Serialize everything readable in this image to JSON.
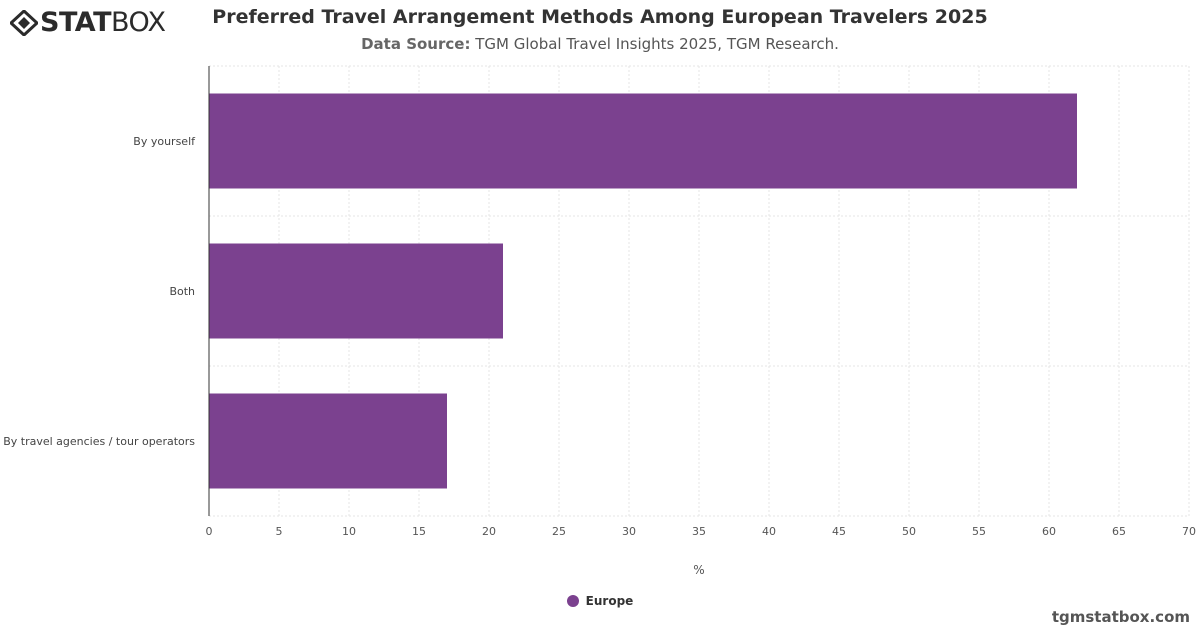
{
  "brand": {
    "logo_bold": "STAT",
    "logo_light": "BOX",
    "credit": "tgmstatbox.com"
  },
  "header": {
    "title": "Preferred Travel Arrangement Methods Among European Travelers 2025",
    "source_label": "Data Source:",
    "source_text": "TGM Global Travel Insights 2025, TGM Research."
  },
  "colors": {
    "bar": "#7b418f",
    "grid": "#e6e6e6",
    "axis": "#333333",
    "text": "#333333"
  },
  "chart_data": {
    "type": "bar",
    "orientation": "horizontal",
    "title": "Preferred Travel Arrangement Methods Among European Travelers 2025",
    "subtitle": "Data Source: TGM Global Travel Insights 2025, TGM Research.",
    "categories": [
      "By yourself",
      "Both",
      "By travel agencies / tour operators"
    ],
    "series": [
      {
        "name": "Europe",
        "values": [
          62,
          21,
          17
        ],
        "color": "#7b418f"
      }
    ],
    "xlabel": "%",
    "ylabel": "",
    "xlim": [
      0,
      70
    ],
    "xticks": [
      0,
      5,
      10,
      15,
      20,
      25,
      30,
      35,
      40,
      45,
      50,
      55,
      60,
      65,
      70
    ],
    "grid": true,
    "legend": "bottom-center"
  }
}
